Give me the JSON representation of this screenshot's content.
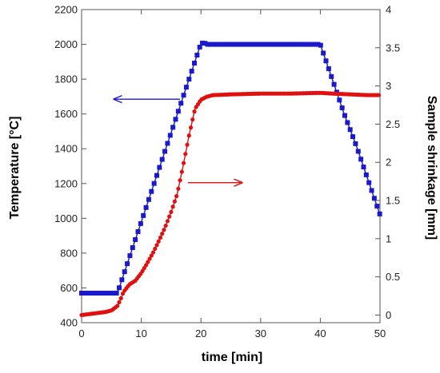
{
  "chart_data": {
    "type": "scatter",
    "title": "",
    "xlabel": "time [min]",
    "ylabel_left": "Temperature [°C]",
    "ylabel_right": "Sample shrinkage [mm]",
    "xlim": [
      0,
      50
    ],
    "ylim_left": [
      400,
      2200
    ],
    "ylim_right": [
      -0.1,
      4.0
    ],
    "x_ticks": [
      0,
      10,
      20,
      30,
      40,
      50
    ],
    "y_left_ticks": [
      400,
      600,
      800,
      1000,
      1200,
      1400,
      1600,
      1800,
      2000,
      2200
    ],
    "y_right_ticks": [
      0,
      0.5,
      1,
      1.5,
      2,
      2.5,
      3,
      3.5,
      4
    ],
    "grid": false,
    "legend": "none",
    "series": [
      {
        "axis": "left",
        "color": "#1a1acc",
        "marker": "square",
        "points": [
          [
            0,
            570
          ],
          [
            6,
            570
          ],
          [
            20,
            2005
          ],
          [
            20.5,
            2010
          ],
          [
            21,
            2000
          ],
          [
            40,
            2000
          ],
          [
            42,
            1800
          ],
          [
            44,
            1600
          ],
          [
            46,
            1420
          ],
          [
            48,
            1220
          ],
          [
            50,
            1020
          ]
        ]
      },
      {
        "axis": "right",
        "color": "#e01010",
        "marker": "circle",
        "points": [
          [
            0,
            0.0
          ],
          [
            1,
            0.01
          ],
          [
            2,
            0.02
          ],
          [
            3,
            0.03
          ],
          [
            4,
            0.04
          ],
          [
            5,
            0.06
          ],
          [
            6,
            0.12
          ],
          [
            6.5,
            0.2
          ],
          [
            7,
            0.3
          ],
          [
            8,
            0.4
          ],
          [
            9,
            0.45
          ],
          [
            10,
            0.55
          ],
          [
            11,
            0.68
          ],
          [
            12,
            0.82
          ],
          [
            13,
            0.98
          ],
          [
            14,
            1.15
          ],
          [
            15,
            1.35
          ],
          [
            16,
            1.58
          ],
          [
            17,
            1.95
          ],
          [
            18,
            2.35
          ],
          [
            19,
            2.7
          ],
          [
            20,
            2.82
          ],
          [
            21,
            2.86
          ],
          [
            22,
            2.88
          ],
          [
            25,
            2.89
          ],
          [
            30,
            2.9
          ],
          [
            35,
            2.9
          ],
          [
            40,
            2.91
          ],
          [
            42,
            2.9
          ],
          [
            45,
            2.89
          ],
          [
            48,
            2.88
          ],
          [
            50,
            2.88
          ]
        ]
      }
    ],
    "annotations": [
      {
        "type": "arrow",
        "color": "#1a1acc",
        "from": [
          16.5,
          1685
        ],
        "to": [
          5.3,
          1685
        ]
      },
      {
        "type": "arrow",
        "color": "#e01010",
        "from": [
          17.8,
          1205
        ],
        "to": [
          27,
          1205
        ]
      }
    ]
  }
}
